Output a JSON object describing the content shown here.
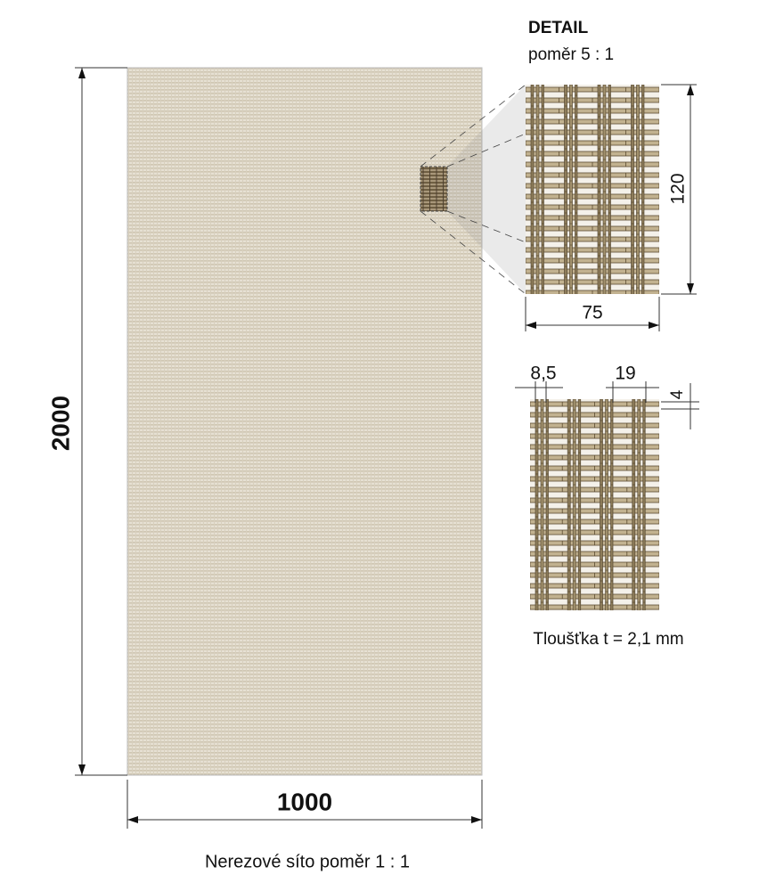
{
  "detail": {
    "title": "DETAIL",
    "scale": "poměr 5 : 1",
    "height": "120",
    "width": "75"
  },
  "pitch": {
    "rod_gap": "8,5",
    "group_gap": "19",
    "bar_gap": "4",
    "thickness": "Tloušťka t = 2,1 mm"
  },
  "panel": {
    "height": "2000",
    "width": "1000",
    "caption": "Nerezové síto poměr 1 : 1"
  }
}
